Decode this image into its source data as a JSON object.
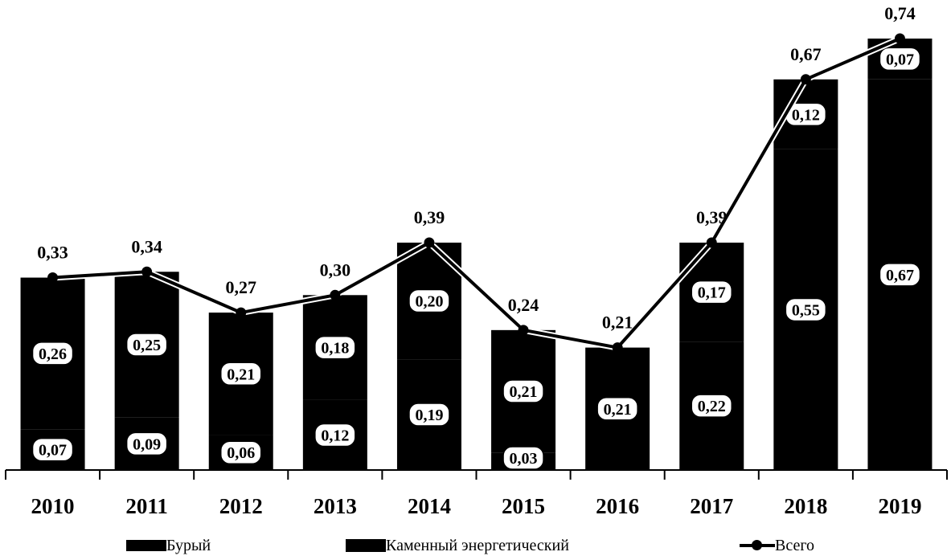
{
  "chart_data": {
    "type": "bar",
    "stacked": true,
    "categories": [
      "2010",
      "2011",
      "2012",
      "2013",
      "2014",
      "2015",
      "2016",
      "2017",
      "2018",
      "2019"
    ],
    "series": [
      {
        "name": "Бурый",
        "values": [
          0.07,
          0.09,
          0.06,
          0.12,
          0.19,
          0.03,
          null,
          null,
          null,
          null
        ],
        "labels": [
          "0,07",
          "0,09",
          "0,06",
          "0,12",
          "0,19",
          "0,03",
          "",
          "",
          "",
          ""
        ],
        "color": "#000000"
      },
      {
        "name": "Каменный энергетический",
        "values": [
          0.26,
          0.25,
          0.21,
          0.18,
          0.2,
          0.21,
          0.21,
          0.22,
          0.55,
          0.67
        ],
        "labels": [
          "0,26",
          "0,25",
          "0,21",
          "0,18",
          "0,20",
          "0,21",
          "0,21",
          "0,22",
          "0,55",
          "0,67"
        ],
        "color": "#000000"
      },
      {
        "name": "",
        "values": [
          null,
          null,
          null,
          null,
          null,
          null,
          null,
          0.17,
          0.12,
          0.07
        ],
        "labels": [
          "",
          "",
          "",
          "",
          "",
          "",
          "",
          "0,17",
          "0,12",
          "0,07"
        ],
        "color": "#000000"
      }
    ],
    "line": {
      "name": "Всего",
      "values": [
        0.33,
        0.34,
        0.27,
        0.3,
        0.39,
        0.24,
        0.21,
        0.39,
        0.67,
        0.74
      ],
      "labels": [
        "0,33",
        "0,34",
        "0,27",
        "0,30",
        "0,39",
        "0,24",
        "0,21",
        "0,39",
        "0,67",
        "0,74"
      ],
      "color": "#000000"
    },
    "ylim": [
      0,
      0.74
    ],
    "grid": false,
    "legend_position": "bottom",
    "title": "",
    "xlabel": "",
    "ylabel": ""
  },
  "legend": {
    "items": [
      {
        "label": "Бурый",
        "kind": "bar"
      },
      {
        "label": "Каменный энергетический",
        "kind": "bar"
      },
      {
        "label": "Всего",
        "kind": "line"
      }
    ]
  }
}
